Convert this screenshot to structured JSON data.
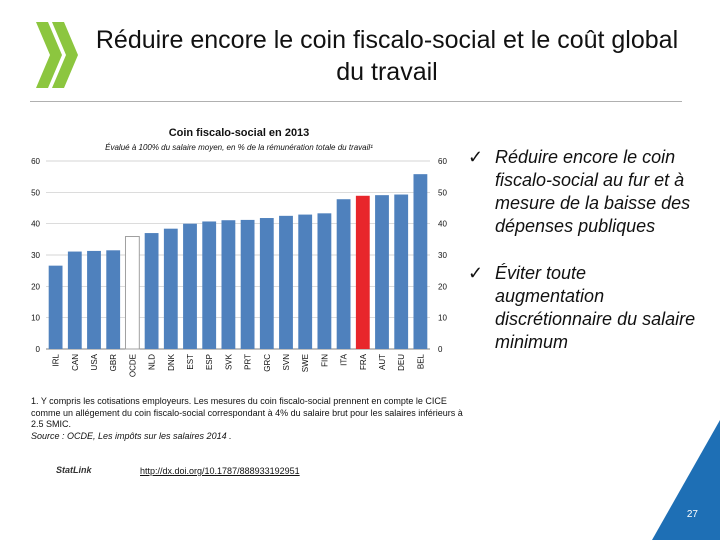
{
  "slide": {
    "title": "Réduire encore le coin fiscalo-social et le coût global du travail",
    "page_number": "27"
  },
  "colors": {
    "bar_default": "#4f81bd",
    "bar_highlight": "#e8262b",
    "bar_outline": "#a0a0a0",
    "logo_green": "#8cc63f",
    "corner_blue": "#1e6fb5"
  },
  "chart_data": {
    "type": "bar",
    "title": "Coin fiscalo-social en 2013",
    "subtitle": "Évalué à 100% du salaire moyen, en % de la rémunération totale du travail¹",
    "categories": [
      "IRL",
      "CAN",
      "USA",
      "GBR",
      "OCDE",
      "NLD",
      "DNK",
      "EST",
      "ESP",
      "SVK",
      "PRT",
      "GRC",
      "SVN",
      "SWE",
      "FIN",
      "ITA",
      "FRA",
      "AUT",
      "DEU",
      "BEL"
    ],
    "values": [
      26.6,
      31.1,
      31.3,
      31.5,
      35.9,
      37.0,
      38.4,
      40.0,
      40.7,
      41.1,
      41.2,
      41.8,
      42.5,
      42.9,
      43.3,
      47.8,
      48.9,
      49.1,
      49.3,
      55.8
    ],
    "highlight": {
      "OCDE": "outline",
      "FRA": "red"
    },
    "ylim": [
      0,
      60
    ],
    "yticks": [
      "0",
      "10",
      "20",
      "30",
      "40",
      "50",
      "60"
    ],
    "grid": true
  },
  "notes": {
    "footnote": "1. Y compris les cotisations employeurs. Les mesures du coin fiscalo-social prennent en compte le CICE comme un allégement du coin fiscalo-social correspondant à 4% du salaire brut pour les salaires inférieurs à 2.5 SMIC.",
    "source": "Source : OCDE, Les impôts sur les salaires 2014 .",
    "statlink": "StatLink",
    "link": "http://dx.doi.org/10.1787/888933192951"
  },
  "bullets": {
    "check_glyph": "✓",
    "items": [
      "Réduire encore le coin fiscalo-social au fur et à mesure de la baisse des dépenses publiques",
      "Éviter toute augmentation discrétionnaire du salaire minimum"
    ]
  }
}
